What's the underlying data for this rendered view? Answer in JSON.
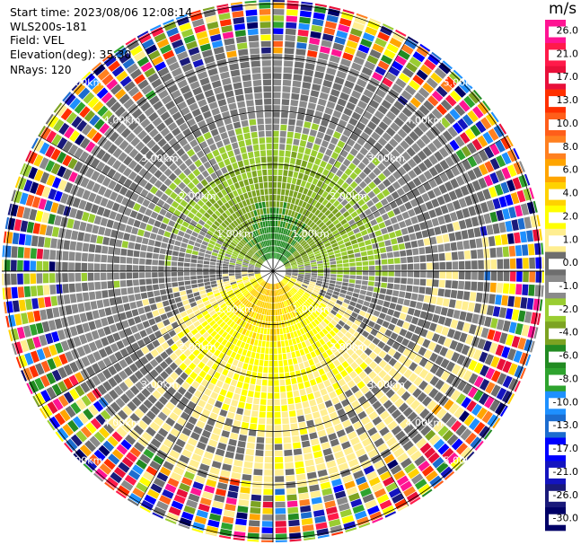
{
  "header": {
    "start_time": "Start time: 2023/08/06 12:08:14",
    "instrument": "WLS200s-181",
    "field": "Field: VEL",
    "elevation": "Elevation(deg): 35.30",
    "nrays": "NRays: 120"
  },
  "chart_data": {
    "type": "heatmap",
    "projection": "polar-ppi",
    "field": "VEL",
    "units": "m/s",
    "nrays": 120,
    "range_rings_km": [
      1.0,
      2.0,
      3.0,
      4.0,
      5.0
    ],
    "ring_labels": [
      "1.00km",
      "2.00km",
      "3.00km",
      "4.00km",
      "5.00km"
    ],
    "colorbar": {
      "unit_label": "m/s",
      "min": -30.0,
      "max": 30.0,
      "ticks": [
        "26.0",
        "21.0",
        "17.0",
        "13.0",
        "10.0",
        "8.0",
        "6.0",
        "4.0",
        "2.0",
        "1.0",
        "0.0",
        "-1.0",
        "-2.0",
        "-4.0",
        "-6.0",
        "-8.0",
        "-10.0",
        "-13.0",
        "-17.0",
        "-21.0",
        "-26.0",
        "-30.0"
      ],
      "colors": [
        "#ff1493",
        "#ff1a4a",
        "#e8103a",
        "#ff3000",
        "#ff5e1a",
        "#ff8020",
        "#ffa500",
        "#ffd200",
        "#ffff00",
        "#ffee90",
        "#6e6e6e",
        "#8a8a8a",
        "#9acd32",
        "#7ca322",
        "#228b22",
        "#2ea32e",
        "#1e90ff",
        "#1c6ccf",
        "#0000ff",
        "#1414bf",
        "#1a1a7a",
        "#000066"
      ]
    },
    "velocity_structure": [
      {
        "azimuth_deg": 0,
        "near_km": -7.5,
        "mid_km": -3.0,
        "far_km": 0.0
      },
      {
        "azimuth_deg": 45,
        "near_km": -5.0,
        "mid_km": -2.0,
        "far_km": 0.0
      },
      {
        "azimuth_deg": 90,
        "near_km": -0.5,
        "mid_km": -1.5,
        "far_km": 0.5
      },
      {
        "azimuth_deg": 135,
        "near_km": 4.0,
        "mid_km": 2.0,
        "far_km": 1.0
      },
      {
        "azimuth_deg": 180,
        "near_km": 7.0,
        "mid_km": 3.0,
        "far_km": 1.5
      },
      {
        "azimuth_deg": 225,
        "near_km": 5.0,
        "mid_km": 3.0,
        "far_km": 0.5
      },
      {
        "azimuth_deg": 270,
        "near_km": 0.5,
        "mid_km": 0.0,
        "far_km": -0.5
      },
      {
        "azimuth_deg": 315,
        "near_km": -4.0,
        "mid_km": -2.0,
        "far_km": 0.0
      }
    ],
    "noisy_beyond_km": 4.2
  }
}
